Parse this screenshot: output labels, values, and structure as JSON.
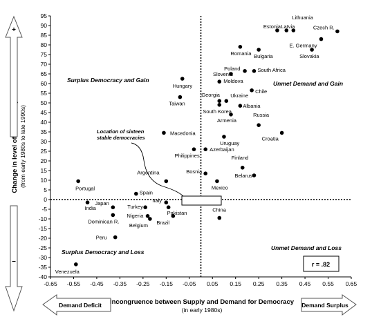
{
  "chart_data": {
    "type": "scatter",
    "xlabel": "Incongruence between Supply and Demand for Democracy",
    "xlabel_sub": "(in early 1980s)",
    "ylabel": "Change in level of Democracy",
    "ylabel_sub": "(from early 1980s to late 1990s)",
    "xlim": [
      -0.65,
      0.65
    ],
    "ylim": [
      -40,
      95
    ],
    "xticks": [
      "-0.65",
      "-0.55",
      "-0.45",
      "-0.35",
      "-0.25",
      "-0.15",
      "-0.05",
      "0.05",
      "0.15",
      "0.25",
      "0.35",
      "0.45",
      "0.55",
      "0.65"
    ],
    "yticks": [
      "95",
      "90",
      "85",
      "80",
      "75",
      "70",
      "65",
      "60",
      "55",
      "50",
      "45",
      "40",
      "35",
      "30",
      "25",
      "20",
      "15",
      "10",
      "5",
      "0",
      "-5",
      "-10",
      "-15",
      "-20",
      "-25",
      "-30",
      "-35",
      "-40"
    ],
    "grid": false,
    "points": [
      {
        "label": "Lithuania",
        "x": 0.4,
        "y": 87.5
      },
      {
        "label": "Estonia",
        "x": 0.33,
        "y": 87.5
      },
      {
        "label": "Latvia",
        "x": 0.37,
        "y": 87.5
      },
      {
        "label": "Czech R.",
        "x": 0.59,
        "y": 87
      },
      {
        "label": "E. Germany",
        "x": 0.52,
        "y": 83
      },
      {
        "label": "Slovakia",
        "x": 0.48,
        "y": 77.5
      },
      {
        "label": "Romania",
        "x": 0.17,
        "y": 79
      },
      {
        "label": "Bulgaria",
        "x": 0.25,
        "y": 77.5
      },
      {
        "label": "Poland",
        "x": 0.19,
        "y": 66.5
      },
      {
        "label": "South Africa",
        "x": 0.23,
        "y": 66.5
      },
      {
        "label": "Slovenia",
        "x": 0.13,
        "y": 65
      },
      {
        "label": "Moldova",
        "x": 0.08,
        "y": 61
      },
      {
        "label": "Hungary",
        "x": -0.08,
        "y": 62.5
      },
      {
        "label": "Chile",
        "x": 0.22,
        "y": 56.5
      },
      {
        "label": "Georgia",
        "x": 0.08,
        "y": 51
      },
      {
        "label": "Ukraine",
        "x": 0.11,
        "y": 51
      },
      {
        "label": "Taiwan",
        "x": -0.09,
        "y": 53
      },
      {
        "label": "South Korea",
        "x": 0.08,
        "y": 49
      },
      {
        "label": "Albania",
        "x": 0.17,
        "y": 48.5
      },
      {
        "label": "Armenia",
        "x": 0.13,
        "y": 44
      },
      {
        "label": "Russia",
        "x": 0.25,
        "y": 38.5
      },
      {
        "label": "Macedonia",
        "x": -0.16,
        "y": 34.5
      },
      {
        "label": "Croatia",
        "x": 0.35,
        "y": 34.5
      },
      {
        "label": "Uruguay",
        "x": 0.1,
        "y": 32.5
      },
      {
        "label": "Philippines",
        "x": -0.03,
        "y": 26
      },
      {
        "label": "Azerbaijan",
        "x": 0.02,
        "y": 26
      },
      {
        "label": "Finland",
        "x": 0.18,
        "y": 16.5
      },
      {
        "label": "Bosnia",
        "x": 0.02,
        "y": 13.5
      },
      {
        "label": "Belarus",
        "x": 0.23,
        "y": 12.5
      },
      {
        "label": "Argentina",
        "x": -0.15,
        "y": 9.5
      },
      {
        "label": "Mexico",
        "x": 0.07,
        "y": 9.5
      },
      {
        "label": "Portugal",
        "x": -0.53,
        "y": 9.5
      },
      {
        "label": "Spain",
        "x": -0.28,
        "y": 3
      },
      {
        "label": "India",
        "x": -0.49,
        "y": -1.5
      },
      {
        "label": "Italy",
        "x": -0.15,
        "y": -1.5
      },
      {
        "label": "Japan",
        "x": -0.38,
        "y": -4
      },
      {
        "label": "Turkey",
        "x": -0.24,
        "y": -4
      },
      {
        "label": "Pakistan",
        "x": -0.14,
        "y": -4
      },
      {
        "label": "Dominican R.",
        "x": -0.38,
        "y": -8
      },
      {
        "label": "Nigeria",
        "x": -0.23,
        "y": -8.5
      },
      {
        "label": "Brazil",
        "x": -0.12,
        "y": -8.5
      },
      {
        "label": "Belgium",
        "x": -0.22,
        "y": -10
      },
      {
        "label": "China",
        "x": 0.08,
        "y": -9.5
      },
      {
        "label": "Peru",
        "x": -0.37,
        "y": -19.5
      },
      {
        "label": "Venezuela",
        "x": -0.54,
        "y": -33.5
      }
    ],
    "quadrant_labels": {
      "top_left": "Surplus Democracy and Gain",
      "top_right": "Unmet Demand and Gain",
      "bottom_left": "Surplus Democracy and Loss",
      "bottom_right": "Unmet Demand and Loss"
    },
    "annotation": "Location of sixteen stable democracies",
    "stat_box": "r = .82",
    "arrows": {
      "up": "+",
      "down": "–",
      "left": "Demand Deficit",
      "right": "Demand Surplus"
    },
    "colors": {
      "point": "#000000",
      "arrow_fill": "#ffffff",
      "arrow_stroke": "#555555"
    }
  }
}
